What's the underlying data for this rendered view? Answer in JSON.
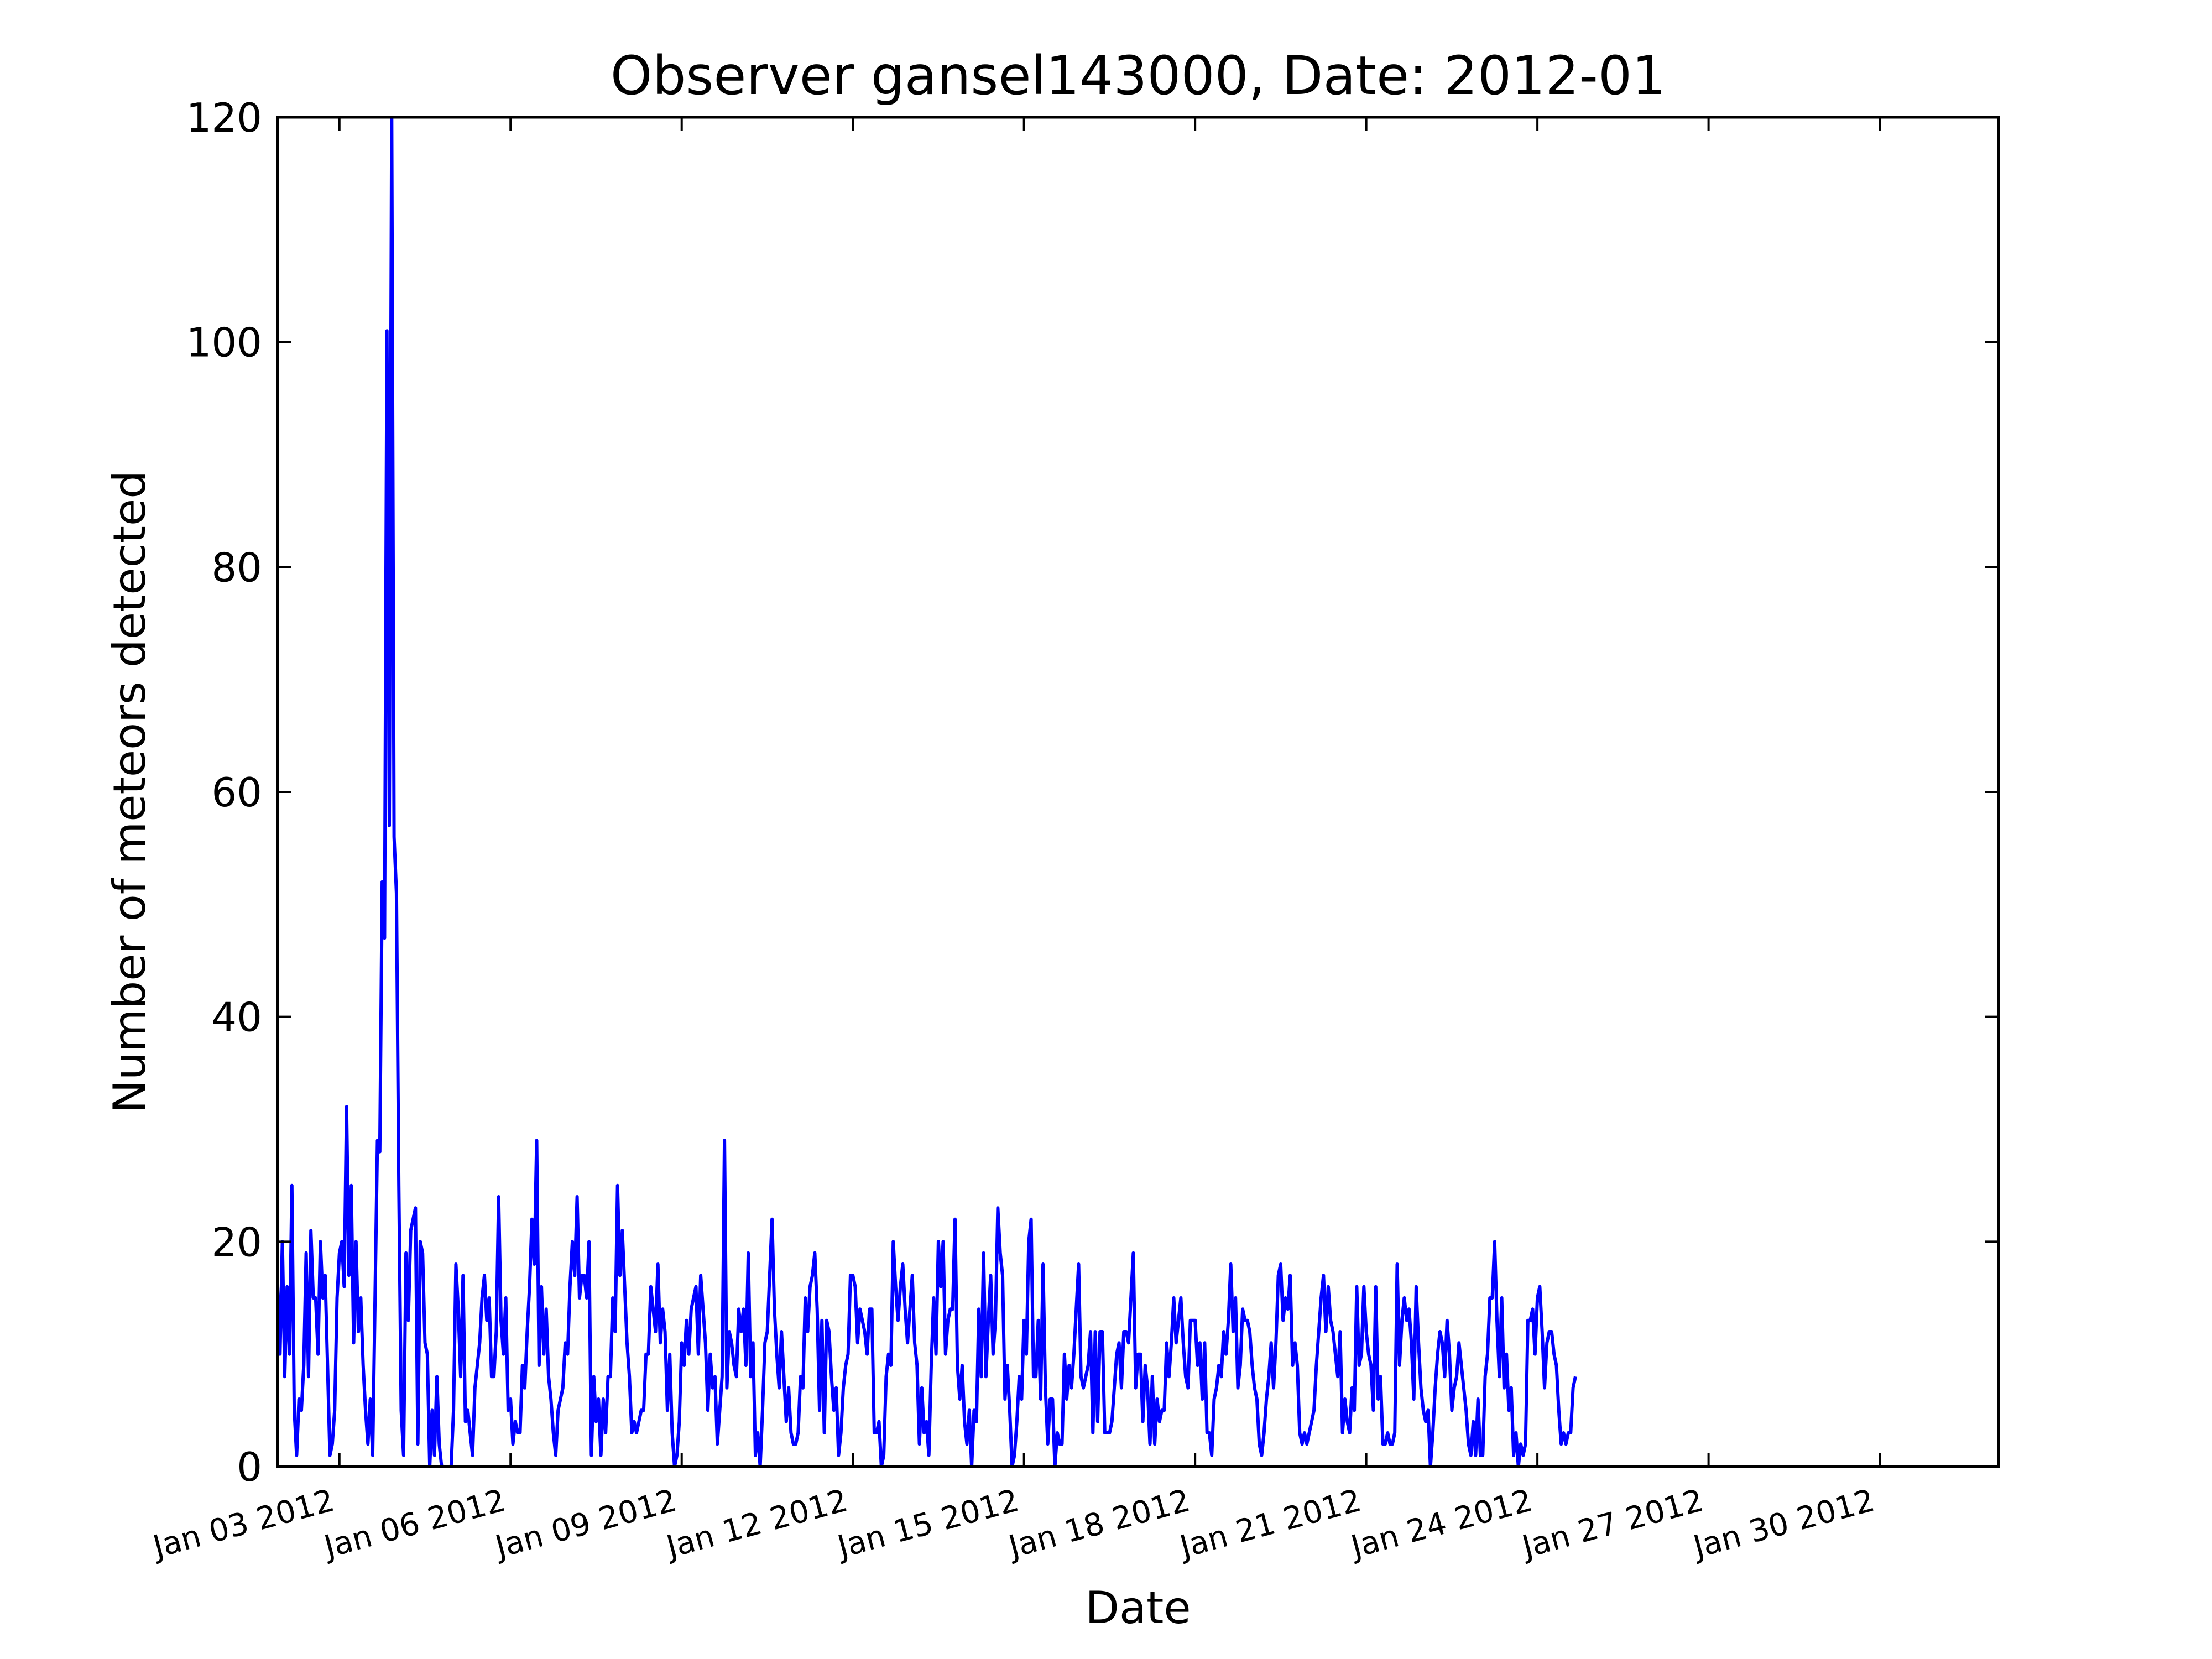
{
  "chart_data": {
    "type": "line",
    "title": "Observer gansel143000, Date: 2012-01",
    "xlabel": "Date",
    "ylabel": "Number of meteors detected",
    "ylim": [
      0,
      120
    ],
    "yticks": [
      "0",
      "20",
      "40",
      "60",
      "80",
      "100",
      "120"
    ],
    "xlim": [
      "2012-01-01T22:00",
      "2012-02-01T02:00"
    ],
    "xticks": [
      {
        "date": "2012-01-03",
        "label": "Jan 03 2012"
      },
      {
        "date": "2012-01-06",
        "label": "Jan 06 2012"
      },
      {
        "date": "2012-01-09",
        "label": "Jan 09 2012"
      },
      {
        "date": "2012-01-12",
        "label": "Jan 12 2012"
      },
      {
        "date": "2012-01-15",
        "label": "Jan 15 2012"
      },
      {
        "date": "2012-01-18",
        "label": "Jan 18 2012"
      },
      {
        "date": "2012-01-21",
        "label": "Jan 21 2012"
      },
      {
        "date": "2012-01-24",
        "label": "Jan 24 2012"
      },
      {
        "date": "2012-01-27",
        "label": "Jan 27 2012"
      },
      {
        "date": "2012-01-30",
        "label": "Jan 30 2012"
      }
    ],
    "grid": false,
    "line_color": "#0000ff",
    "series": [
      {
        "x_start": "2012-01-01T22:00",
        "x_step_hours": 1,
        "values": [
          16,
          10,
          20,
          8,
          16,
          10,
          25,
          5,
          1,
          6,
          5,
          9,
          19,
          8,
          21,
          15,
          15,
          10,
          20,
          15,
          17,
          9,
          1,
          2,
          5,
          15,
          19,
          20,
          16,
          32,
          17,
          25,
          11,
          20,
          12,
          15,
          9,
          5,
          2,
          6,
          1,
          15,
          29,
          28,
          52,
          47,
          101,
          57,
          120,
          56,
          51,
          25,
          5,
          1,
          19,
          13,
          21,
          22,
          23,
          2,
          20,
          19,
          11,
          10,
          0,
          5,
          1,
          8,
          2,
          0,
          0,
          0,
          0,
          0,
          5,
          18,
          14,
          8,
          17,
          4,
          5,
          3,
          1,
          7,
          9,
          11,
          15,
          17,
          13,
          15,
          8,
          8,
          12,
          24,
          13,
          10,
          15,
          5,
          6,
          2,
          4,
          3,
          3,
          9,
          7,
          12,
          16,
          22,
          18,
          29,
          9,
          16,
          10,
          14,
          8,
          6,
          3,
          1,
          5,
          6,
          7,
          11,
          10,
          16,
          20,
          17,
          24,
          15,
          17,
          17,
          15,
          20,
          1,
          8,
          4,
          6,
          1,
          6,
          3,
          8,
          8,
          15,
          12,
          25,
          17,
          21,
          16,
          11,
          8,
          3,
          4,
          3,
          4,
          5,
          5,
          10,
          10,
          16,
          14,
          12,
          18,
          11,
          14,
          12,
          5,
          10,
          3,
          0,
          1,
          4,
          11,
          9,
          13,
          10,
          14,
          15,
          16,
          10,
          17,
          14,
          11,
          5,
          10,
          7,
          8,
          2,
          5,
          8,
          29,
          7,
          12,
          11,
          9,
          8,
          14,
          12,
          14,
          9,
          19,
          8,
          11,
          1,
          3,
          0,
          5,
          11,
          12,
          17,
          22,
          14,
          10,
          7,
          12,
          8,
          4,
          7,
          3,
          2,
          2,
          3,
          8,
          7,
          15,
          12,
          16,
          17,
          19,
          14,
          5,
          13,
          3,
          13,
          12,
          8,
          5,
          7,
          1,
          3,
          7,
          9,
          10,
          17,
          17,
          16,
          11,
          14,
          13,
          12,
          10,
          14,
          14,
          3,
          3,
          4,
          0,
          1,
          8,
          10,
          9,
          20,
          16,
          13,
          16,
          18,
          14,
          11,
          14,
          17,
          11,
          9,
          2,
          7,
          3,
          4,
          1,
          9,
          15,
          10,
          20,
          16,
          20,
          10,
          13,
          14,
          14,
          22,
          9,
          6,
          9,
          4,
          2,
          5,
          0,
          5,
          4,
          14,
          8,
          19,
          8,
          13,
          17,
          10,
          13,
          23,
          19,
          17,
          6,
          9,
          5,
          0,
          1,
          4,
          8,
          6,
          13,
          10,
          20,
          22,
          8,
          8,
          13,
          6,
          18,
          7,
          2,
          6,
          6,
          0,
          3,
          2,
          2,
          10,
          6,
          9,
          7,
          10,
          14,
          18,
          8,
          7,
          8,
          9,
          12,
          3,
          12,
          4,
          12,
          12,
          3,
          3,
          3,
          4,
          7,
          10,
          11,
          7,
          12,
          12,
          11,
          15,
          19,
          7,
          10,
          10,
          4,
          9,
          7,
          2,
          8,
          2,
          6,
          4,
          5,
          5,
          11,
          8,
          11,
          15,
          11,
          13,
          15,
          11,
          8,
          7,
          13,
          13,
          13,
          9,
          11,
          6,
          11,
          3,
          3,
          1,
          6,
          7,
          9,
          8,
          12,
          10,
          13,
          18,
          12,
          15,
          7,
          9,
          14,
          13,
          13,
          12,
          9,
          7,
          6,
          2,
          1,
          3,
          6,
          8,
          11,
          7,
          11,
          17,
          18,
          13,
          15,
          14,
          17,
          9,
          11,
          9,
          3,
          2,
          3,
          2,
          3,
          4,
          5,
          9,
          12,
          15,
          17,
          12,
          16,
          13,
          12,
          10,
          8,
          12,
          3,
          6,
          4,
          3,
          7,
          5,
          16,
          9,
          10,
          16,
          12,
          10,
          9,
          5,
          16,
          6,
          8,
          2,
          2,
          3,
          2,
          2,
          3,
          18,
          9,
          13,
          15,
          13,
          14,
          11,
          6,
          16,
          11,
          7,
          5,
          4,
          5,
          0,
          3,
          7,
          10,
          12,
          11,
          8,
          13,
          10,
          5,
          7,
          8,
          11,
          9,
          7,
          5,
          2,
          1,
          4,
          1,
          6,
          1,
          1,
          8,
          10,
          15,
          15,
          20,
          13,
          8,
          15,
          7,
          10,
          5,
          7,
          1,
          3,
          0,
          2,
          1,
          2,
          13,
          13,
          14,
          10,
          15,
          16,
          12,
          7,
          11,
          12,
          12,
          10,
          9,
          5,
          2,
          3,
          2,
          3,
          3,
          7,
          8
        ]
      }
    ]
  }
}
